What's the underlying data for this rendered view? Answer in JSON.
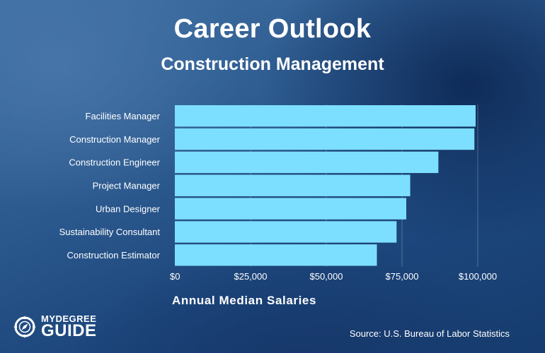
{
  "header": {
    "title": "Career Outlook",
    "subtitle": "Construction Management"
  },
  "chart_data": {
    "type": "bar",
    "orientation": "horizontal",
    "categories": [
      "Facilities Manager",
      "Construction Manager",
      "Construction Engineer",
      "Project Manager",
      "Urban Designer",
      "Sustainability Consultant",
      "Construction Estimator"
    ],
    "values": [
      99290,
      98890,
      87000,
      77700,
      76400,
      73200,
      66700
    ],
    "xlabel": "Annual Median Salaries",
    "xlim": [
      0,
      100000
    ],
    "xticks": [
      0,
      25000,
      50000,
      75000,
      100000
    ],
    "xtick_labels": [
      "$0",
      "$25,000",
      "$50,000",
      "$75,000",
      "$100,000"
    ],
    "grid": "vertical",
    "bar_color": "#7ddfff"
  },
  "footer": {
    "logo_top": "MYDEGREE",
    "logo_bottom": "GUIDE",
    "source": "Source: U.S. Bureau of Labor Statistics"
  }
}
